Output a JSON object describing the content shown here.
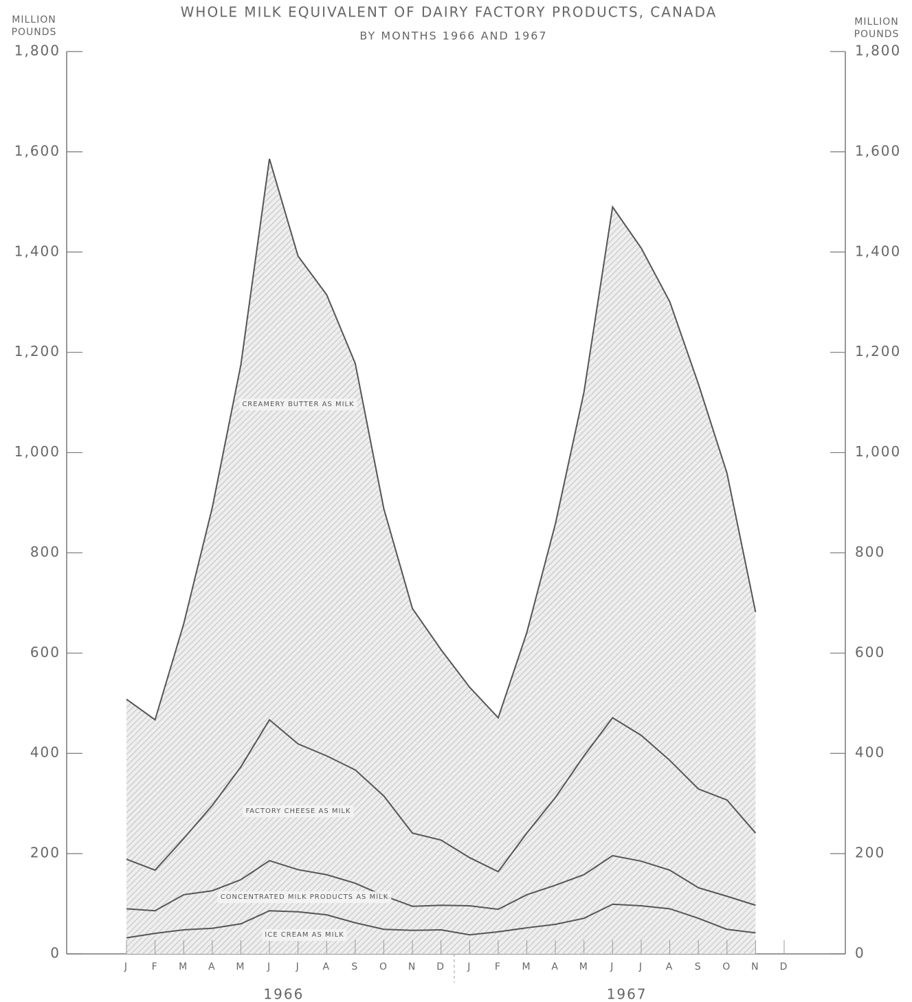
{
  "chart_data": {
    "type": "stacked-line",
    "title": "WHOLE MILK EQUIVALENT OF DAIRY FACTORY PRODUCTS, CANADA",
    "subtitle": "BY MONTHS 1966 AND 1967",
    "y_label": "MILLION POUNDS",
    "y2_label": "MILLION POUNDS",
    "categories": [
      "J",
      "F",
      "M",
      "A",
      "M",
      "J",
      "J",
      "A",
      "S",
      "O",
      "N",
      "D",
      "J",
      "F",
      "M",
      "A",
      "M",
      "J",
      "J",
      "A",
      "S",
      "O",
      "N",
      "D"
    ],
    "year_labels": [
      "1966",
      "1967"
    ],
    "series": [
      {
        "name": "ICE CREAM AS MILK",
        "color": "#555555",
        "values": [
          32,
          41,
          48,
          51,
          60,
          86,
          84,
          78,
          62,
          49,
          47,
          48,
          38,
          44,
          52,
          59,
          71,
          99,
          96,
          90,
          71,
          49,
          42,
          null
        ]
      },
      {
        "name": "CONCENTRATED MILK PRODUCTS AS MILK",
        "color": "#555555",
        "values": [
          58,
          45,
          70,
          75,
          88,
          100,
          84,
          80,
          79,
          67,
          48,
          49,
          58,
          45,
          66,
          78,
          87,
          97,
          89,
          77,
          61,
          66,
          55,
          null
        ]
      },
      {
        "name": "FACTORY CHEESE AS MILK",
        "color": "#555555",
        "values": [
          99,
          81,
          112,
          170,
          225,
          281,
          251,
          237,
          226,
          199,
          146,
          130,
          96,
          75,
          123,
          175,
          237,
          275,
          251,
          219,
          197,
          192,
          144,
          null
        ]
      },
      {
        "name": "CREAMERY BUTTER AS MILK",
        "color": "#555555",
        "values": [
          319,
          300,
          428,
          594,
          802,
          1119,
          973,
          920,
          811,
          573,
          448,
          380,
          340,
          307,
          400,
          546,
          726,
          1019,
          972,
          915,
          808,
          652,
          441,
          null
        ]
      }
    ],
    "ylim": [
      0,
      1800
    ],
    "yticks": [
      0,
      200,
      400,
      600,
      800,
      {
        "value": 1000,
        "label": "1,000"
      },
      {
        "value": 1200,
        "label": "1,200"
      },
      {
        "value": 1400,
        "label": "1,400"
      },
      {
        "value": 1600,
        "label": "1,600"
      },
      {
        "value": 1800,
        "label": "1,800"
      }
    ],
    "y2lim": [
      0,
      1800
    ],
    "y2ticks": [
      0,
      200,
      400,
      600,
      800,
      {
        "value": 1000,
        "label": "1,000"
      },
      {
        "value": 1200,
        "label": "1,200"
      },
      {
        "value": 1400,
        "label": "1,400"
      },
      {
        "value": 1600,
        "label": "1,600"
      },
      {
        "value": 1800,
        "label": "1,800"
      }
    ],
    "grid": false
  }
}
